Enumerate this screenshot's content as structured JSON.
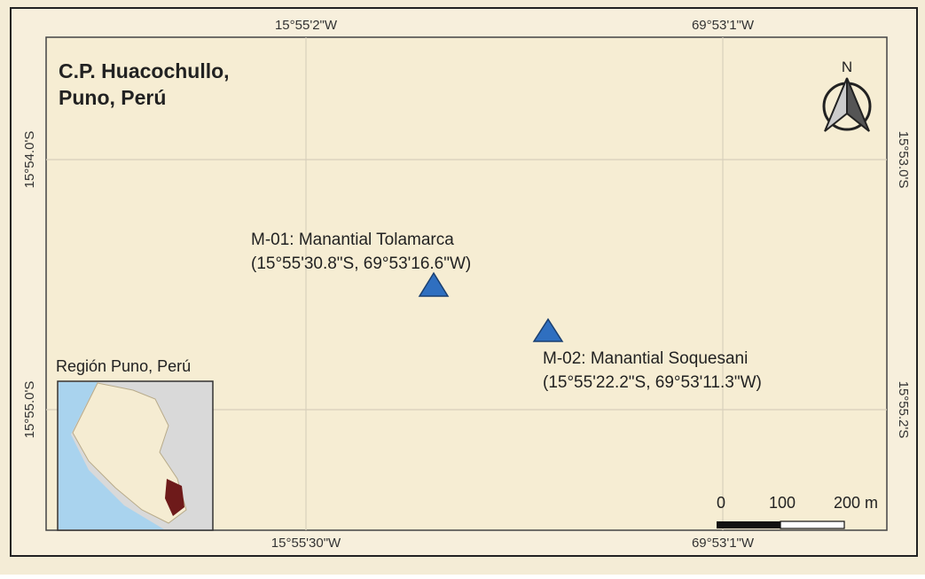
{
  "title": [
    "C.P. Huacochullo,",
    "Puno, Perú"
  ],
  "grid_labels": {
    "top": [
      "15°55'2\"W",
      "69°53'1\"W"
    ],
    "bottom": [
      "15°55'30\"W",
      "69°53'1\"W"
    ],
    "left": [
      "15°54.0'S",
      "15°55.0'S"
    ],
    "right": [
      "15°53.0'S",
      "15°55.2'S"
    ]
  },
  "north": "N",
  "points": [
    {
      "name": "M-01: Manantial Tolamarca",
      "coords": "(15°55'30.8\"S, 69°53'16.6\"W)"
    },
    {
      "name": "M-02: Manantial Soquesani",
      "coords": "(15°55'22.2\"S, 69°53'11.3\"W)"
    }
  ],
  "inset": {
    "label": "Región Puno, Perú"
  },
  "scale_bar": [
    "0",
    "100",
    "200 m"
  ]
}
